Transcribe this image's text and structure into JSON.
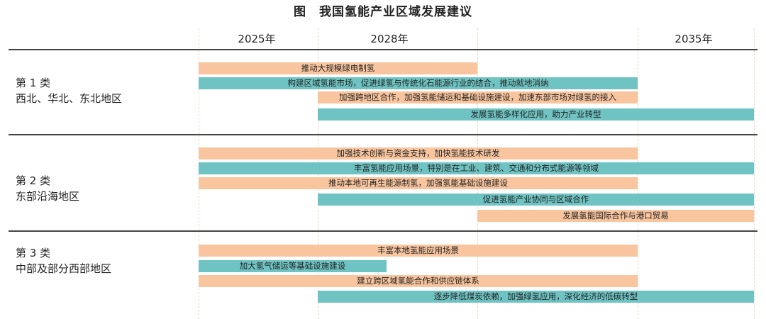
{
  "title": "图　我国氢能产业区域发展建议",
  "years": [
    "2025年",
    "2028年",
    "2035年"
  ],
  "colors": {
    "orange": "#f8c59e",
    "teal": "#6fc3c3"
  },
  "groups": [
    {
      "category": "第 1 类",
      "region": "西北、华北、东北地区",
      "bars": [
        {
          "text": "推动大规模绿电制氢",
          "color": "orange"
        },
        {
          "text": "构建区域氢能市场，促进绿氢与传统化石能源行业的结合，推动就地消纳",
          "color": "teal"
        },
        {
          "text": "加强跨地区合作，加强氢能储运和基础设施建设，加速东部市场对绿氢的接入",
          "color": "orange"
        },
        {
          "text": "发展氢能多样化应用，助力产业转型",
          "color": "teal"
        }
      ]
    },
    {
      "category": "第 2 类",
      "region": "东部沿海地区",
      "bars": [
        {
          "text": "加强技术创新与资金支持，加快氢能技术研发",
          "color": "orange"
        },
        {
          "text": "丰富氢能应用场景，特别是在工业、建筑、交通和分布式能源等领域",
          "color": "teal"
        },
        {
          "text": "推动本地可再生能源制氢，加强氢能基础设施建设",
          "color": "orange"
        },
        {
          "text": "促进氢能产业协同与区域合作",
          "color": "teal"
        },
        {
          "text": "发展氢能国际合作与港口贸易",
          "color": "orange"
        }
      ]
    },
    {
      "category": "第 3 类",
      "region": "中部及部分西部地区",
      "bars": [
        {
          "text": "丰富本地氢能应用场景",
          "color": "orange"
        },
        {
          "text": "加大氢气储运等基础设施建设",
          "color": "teal"
        },
        {
          "text": "建立跨区域氢能合作和供应链体系",
          "color": "orange"
        },
        {
          "text": "逐步降低煤炭依赖，加强绿氢应用，深化经济的低碳转型",
          "color": "teal"
        }
      ]
    }
  ]
}
